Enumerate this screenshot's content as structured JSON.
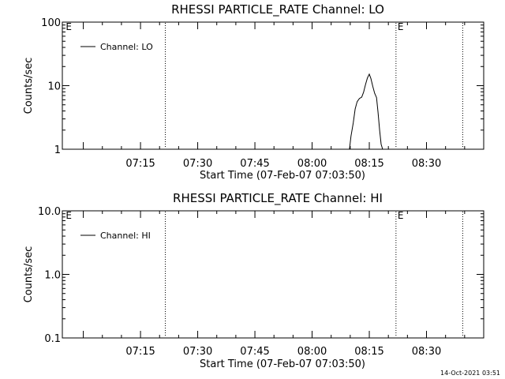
{
  "footer_timestamp": "14-Oct-2021 03:51",
  "chart_data": [
    {
      "type": "line",
      "title": "RHESSI PARTICLE_RATE Channel: LO",
      "xlabel": "Start Time (07-Feb-07 07:03:50)",
      "ylabel": "Counts/sec",
      "yscale": "log",
      "ylim": [
        1,
        100
      ],
      "y_ticks": [
        {
          "value": 1,
          "label": "1"
        },
        {
          "value": 10,
          "label": "10"
        },
        {
          "value": 100,
          "label": "100"
        }
      ],
      "xlim_minutes": [
        -5.5,
        105
      ],
      "x_ticks": [
        {
          "minute": 15,
          "label": "07:15"
        },
        {
          "minute": 30,
          "label": "07:30"
        },
        {
          "minute": 45,
          "label": "07:45"
        },
        {
          "minute": 60,
          "label": "08:00"
        },
        {
          "minute": 75,
          "label": "08:15"
        },
        {
          "minute": 90,
          "label": "08:30"
        }
      ],
      "vlines_minutes": [
        21.5,
        82,
        99.5
      ],
      "markers": [
        {
          "minute": -5,
          "label": "E"
        },
        {
          "minute": 82,
          "label": "E"
        }
      ],
      "legend": {
        "position": "top-left",
        "label": "Channel: LO"
      },
      "series": [
        {
          "name": "Channel: LO",
          "x_minutes": [
            69.8,
            70.2,
            70.8,
            71.3,
            71.8,
            72.4,
            73.0,
            73.5,
            74.0,
            74.5,
            75.0,
            75.4,
            75.9,
            76.4,
            76.9,
            77.3,
            77.7,
            78.1,
            78.5
          ],
          "values": [
            1.0,
            1.6,
            2.6,
            4.3,
            5.6,
            6.3,
            6.6,
            7.9,
            10.4,
            13.2,
            15.2,
            13.0,
            9.8,
            7.6,
            6.5,
            3.8,
            2.0,
            1.2,
            1.0
          ]
        }
      ]
    },
    {
      "type": "line",
      "title": "RHESSI PARTICLE_RATE Channel: HI",
      "xlabel": "Start Time (07-Feb-07 07:03:50)",
      "ylabel": "Counts/sec",
      "yscale": "log",
      "ylim": [
        0.1,
        10
      ],
      "y_ticks": [
        {
          "value": 0.1,
          "label": "0.1"
        },
        {
          "value": 1,
          "label": "1.0"
        },
        {
          "value": 10,
          "label": "10.0"
        }
      ],
      "xlim_minutes": [
        -5.5,
        105
      ],
      "x_ticks": [
        {
          "minute": 15,
          "label": "07:15"
        },
        {
          "minute": 30,
          "label": "07:30"
        },
        {
          "minute": 45,
          "label": "07:45"
        },
        {
          "minute": 60,
          "label": "08:00"
        },
        {
          "minute": 75,
          "label": "08:15"
        },
        {
          "minute": 90,
          "label": "08:30"
        }
      ],
      "vlines_minutes": [
        21.5,
        82,
        99.5
      ],
      "markers": [
        {
          "minute": -5,
          "label": "E"
        },
        {
          "minute": 82,
          "label": "E"
        }
      ],
      "legend": {
        "position": "top-left",
        "label": "Channel: HI"
      },
      "series": [
        {
          "name": "Channel: HI",
          "x_minutes": [],
          "values": []
        }
      ]
    }
  ]
}
